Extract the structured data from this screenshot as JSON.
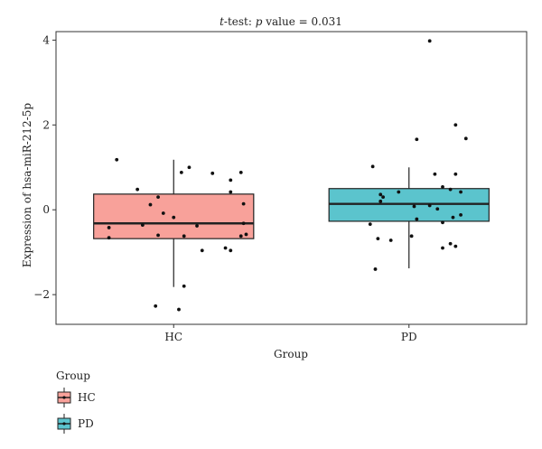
{
  "chart_data": {
    "type": "boxplot",
    "title_italic_1": "t",
    "title_plain_1": "-test: ",
    "title_italic_2": "p",
    "title_plain_2": " value = 0.031",
    "xlabel": "Group",
    "ylabel": "Expression of hsa-miR-212-5p",
    "ylim": [
      -2.7,
      4.2
    ],
    "yticks": [
      -2,
      0,
      2,
      4
    ],
    "ytick_labels": [
      "−2",
      "0",
      "2",
      "4"
    ],
    "categories": [
      "HC",
      "PD"
    ],
    "legend_title": "Group",
    "legend_position": "bottom-left",
    "groups": [
      {
        "name": "HC",
        "color": "#F8A19A",
        "box": {
          "whisker_low": -1.82,
          "q1": -0.68,
          "median": -0.32,
          "q3": 0.37,
          "whisker_high": 1.18
        },
        "points": [
          [
            -0.22,
            1.18
          ],
          [
            0.06,
            1.0
          ],
          [
            0.15,
            0.86
          ],
          [
            0.26,
            0.88
          ],
          [
            -0.14,
            0.48
          ],
          [
            0.22,
            0.7
          ],
          [
            -0.06,
            0.3
          ],
          [
            0.22,
            0.42
          ],
          [
            0.03,
            0.88
          ],
          [
            0.27,
            0.14
          ],
          [
            -0.09,
            0.12
          ],
          [
            -0.04,
            -0.08
          ],
          [
            0.0,
            -0.18
          ],
          [
            0.27,
            -0.32
          ],
          [
            -0.12,
            -0.36
          ],
          [
            -0.25,
            -0.42
          ],
          [
            0.09,
            -0.38
          ],
          [
            -0.06,
            -0.6
          ],
          [
            0.28,
            -0.58
          ],
          [
            0.26,
            -0.62
          ],
          [
            -0.25,
            -0.66
          ],
          [
            0.04,
            -0.62
          ],
          [
            0.2,
            -0.9
          ],
          [
            0.11,
            -0.96
          ],
          [
            0.22,
            -0.96
          ],
          [
            0.04,
            -1.8
          ],
          [
            -0.07,
            -2.27
          ],
          [
            0.02,
            -2.35
          ]
        ]
      },
      {
        "name": "PD",
        "color": "#5BC4CD",
        "box": {
          "whisker_low": -1.38,
          "q1": -0.27,
          "median": 0.14,
          "q3": 0.5,
          "whisker_high": 1.0
        },
        "points": [
          [
            0.08,
            3.98
          ],
          [
            0.18,
            2.0
          ],
          [
            0.03,
            1.66
          ],
          [
            0.22,
            1.68
          ],
          [
            -0.14,
            1.02
          ],
          [
            0.1,
            0.84
          ],
          [
            0.18,
            0.84
          ],
          [
            0.13,
            0.54
          ],
          [
            0.16,
            0.48
          ],
          [
            0.2,
            0.42
          ],
          [
            -0.11,
            0.36
          ],
          [
            -0.1,
            0.3
          ],
          [
            -0.11,
            0.2
          ],
          [
            -0.04,
            0.42
          ],
          [
            0.08,
            0.1
          ],
          [
            0.02,
            0.08
          ],
          [
            0.11,
            0.02
          ],
          [
            0.2,
            -0.12
          ],
          [
            -0.15,
            -0.34
          ],
          [
            0.17,
            -0.18
          ],
          [
            0.03,
            -0.22
          ],
          [
            0.13,
            -0.3
          ],
          [
            -0.12,
            -0.68
          ],
          [
            -0.07,
            -0.72
          ],
          [
            0.01,
            -0.62
          ],
          [
            0.16,
            -0.8
          ],
          [
            0.18,
            -0.86
          ],
          [
            0.13,
            -0.9
          ],
          [
            -0.13,
            -1.4
          ]
        ]
      }
    ]
  }
}
